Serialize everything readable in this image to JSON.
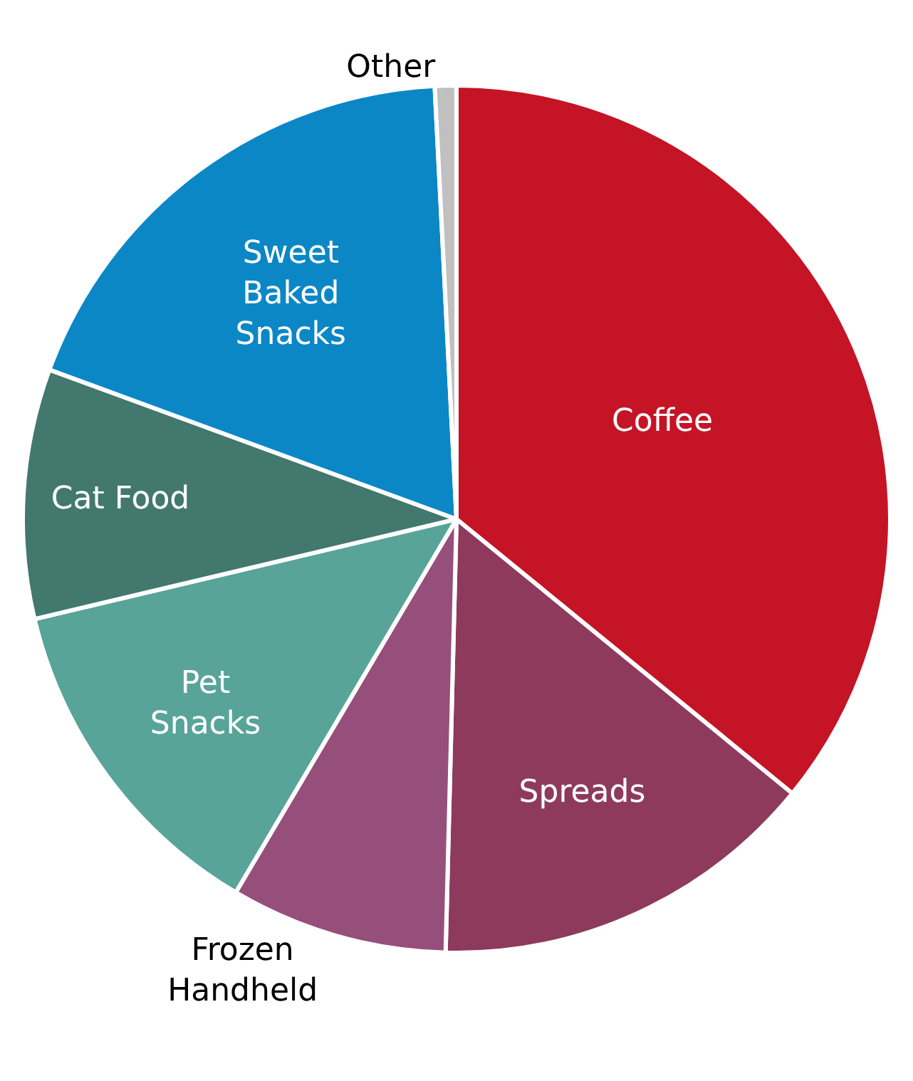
{
  "chart_data": {
    "type": "pie",
    "categories": [
      "Coffee",
      "Spreads",
      "Frozen\nHandheld",
      "Pet\nSnacks",
      "Cat Food",
      "Sweet\nBaked\nSnacks",
      "Other"
    ],
    "values": [
      35.9,
      14.5,
      8.1,
      12.8,
      9.3,
      18.6,
      0.8
    ],
    "colors": [
      "#c41425",
      "#8e3a5c",
      "#964f7a",
      "#58a498",
      "#42786e",
      "#0b87c6",
      "#c0c0c0"
    ],
    "legend": false
  }
}
